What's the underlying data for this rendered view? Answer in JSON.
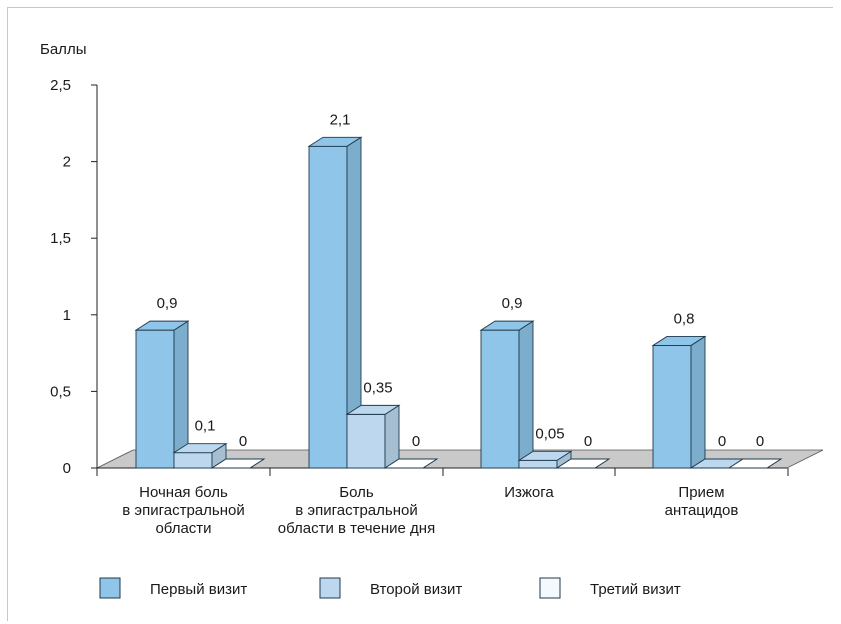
{
  "chart_data": {
    "type": "bar",
    "ylabel": "Баллы",
    "ylim": [
      0,
      2.5
    ],
    "yticks": [
      "0",
      "0,5",
      "1",
      "1,5",
      "2",
      "2,5"
    ],
    "categories": [
      [
        "Ночная боль",
        "в эпигастральной",
        "области"
      ],
      [
        "Боль",
        "в эпигастральной",
        "области в течение дня"
      ],
      [
        "Изжога"
      ],
      [
        "Прием",
        "антацидов"
      ]
    ],
    "series": [
      {
        "name": "Первый визит",
        "values": [
          0.9,
          2.1,
          0.9,
          0.8
        ],
        "labels": [
          "0,9",
          "2,1",
          "0,9",
          "0,8"
        ],
        "color": "#8ec5e8"
      },
      {
        "name": "Второй визит",
        "values": [
          0.1,
          0.35,
          0.05,
          0
        ],
        "labels": [
          "0,1",
          "0,35",
          "0,05",
          "0"
        ],
        "color": "#bdd8ee"
      },
      {
        "name": "Третий визит",
        "values": [
          0,
          0,
          0,
          0
        ],
        "labels": [
          "0",
          "0",
          "0",
          "0"
        ],
        "color": "#f4f9fd"
      }
    ],
    "floor_color": "#c9c9c9",
    "grid": false,
    "legend_position": "bottom"
  }
}
